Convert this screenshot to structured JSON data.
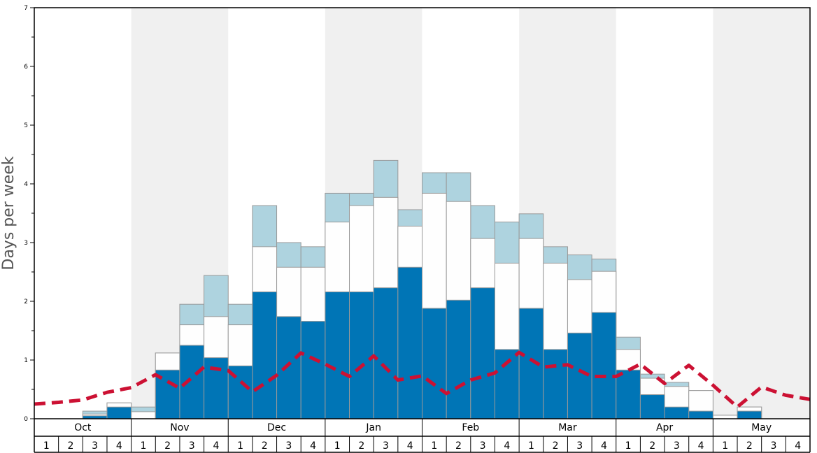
{
  "chart_data": {
    "type": "bar",
    "ylabel": "Days per week",
    "ylim": [
      0,
      7
    ],
    "yticks": [
      "0",
      "1",
      "2",
      "3",
      "4",
      "5",
      "6",
      "7"
    ],
    "months": [
      "Oct",
      "Nov",
      "Dec",
      "Jan",
      "Feb",
      "Mar",
      "Apr",
      "May"
    ],
    "week_labels": [
      "1",
      "2",
      "3",
      "4"
    ],
    "series": [
      {
        "values": [
          0,
          0,
          0.05,
          0.2,
          0,
          0.83,
          1.25,
          1.04,
          0.9,
          2.16,
          1.74,
          1.66,
          2.16,
          2.16,
          2.23,
          2.58,
          1.88,
          2.02,
          2.23,
          1.18,
          1.88,
          1.18,
          1.46,
          1.81,
          0.83,
          0.41,
          0.2,
          0.13,
          0,
          0.13,
          0,
          0
        ]
      },
      {
        "values": [
          0,
          0,
          0.08,
          0.27,
          0.12,
          1.12,
          1.6,
          1.74,
          1.6,
          2.93,
          2.58,
          2.58,
          3.35,
          3.63,
          3.77,
          3.28,
          3.84,
          3.7,
          3.07,
          2.65,
          3.07,
          2.65,
          2.37,
          2.51,
          1.18,
          0.69,
          0.55,
          0.48,
          0.06,
          0.2,
          0,
          0
        ]
      },
      {
        "values": [
          0,
          0,
          0.13,
          0.27,
          0.2,
          1.12,
          1.95,
          2.44,
          1.95,
          3.63,
          3.0,
          2.93,
          3.84,
          3.84,
          4.4,
          3.56,
          4.19,
          4.19,
          3.63,
          3.35,
          3.49,
          2.93,
          2.79,
          2.72,
          1.39,
          0.76,
          0.62,
          0.48,
          0.06,
          0.2,
          0,
          0
        ]
      },
      {
        "values": [
          0.25,
          0.28,
          0.32,
          0.45,
          0.53,
          0.75,
          0.52,
          0.88,
          0.82,
          0.46,
          0.74,
          1.12,
          0.93,
          0.72,
          1.07,
          0.66,
          0.73,
          0.43,
          0.66,
          0.78,
          1.13,
          0.88,
          0.92,
          0.72,
          0.72,
          0.93,
          0.6,
          0.91,
          0.57,
          0.2,
          0.54,
          0.4,
          0.33
        ]
      }
    ],
    "colors": {
      "bar_dark": "#0075b6",
      "bar_white": "#fefefe",
      "bar_light": "#aed3df",
      "bar_edge": "#999999",
      "line": "#cc1133",
      "month_shade": "#f0f0f0"
    }
  }
}
